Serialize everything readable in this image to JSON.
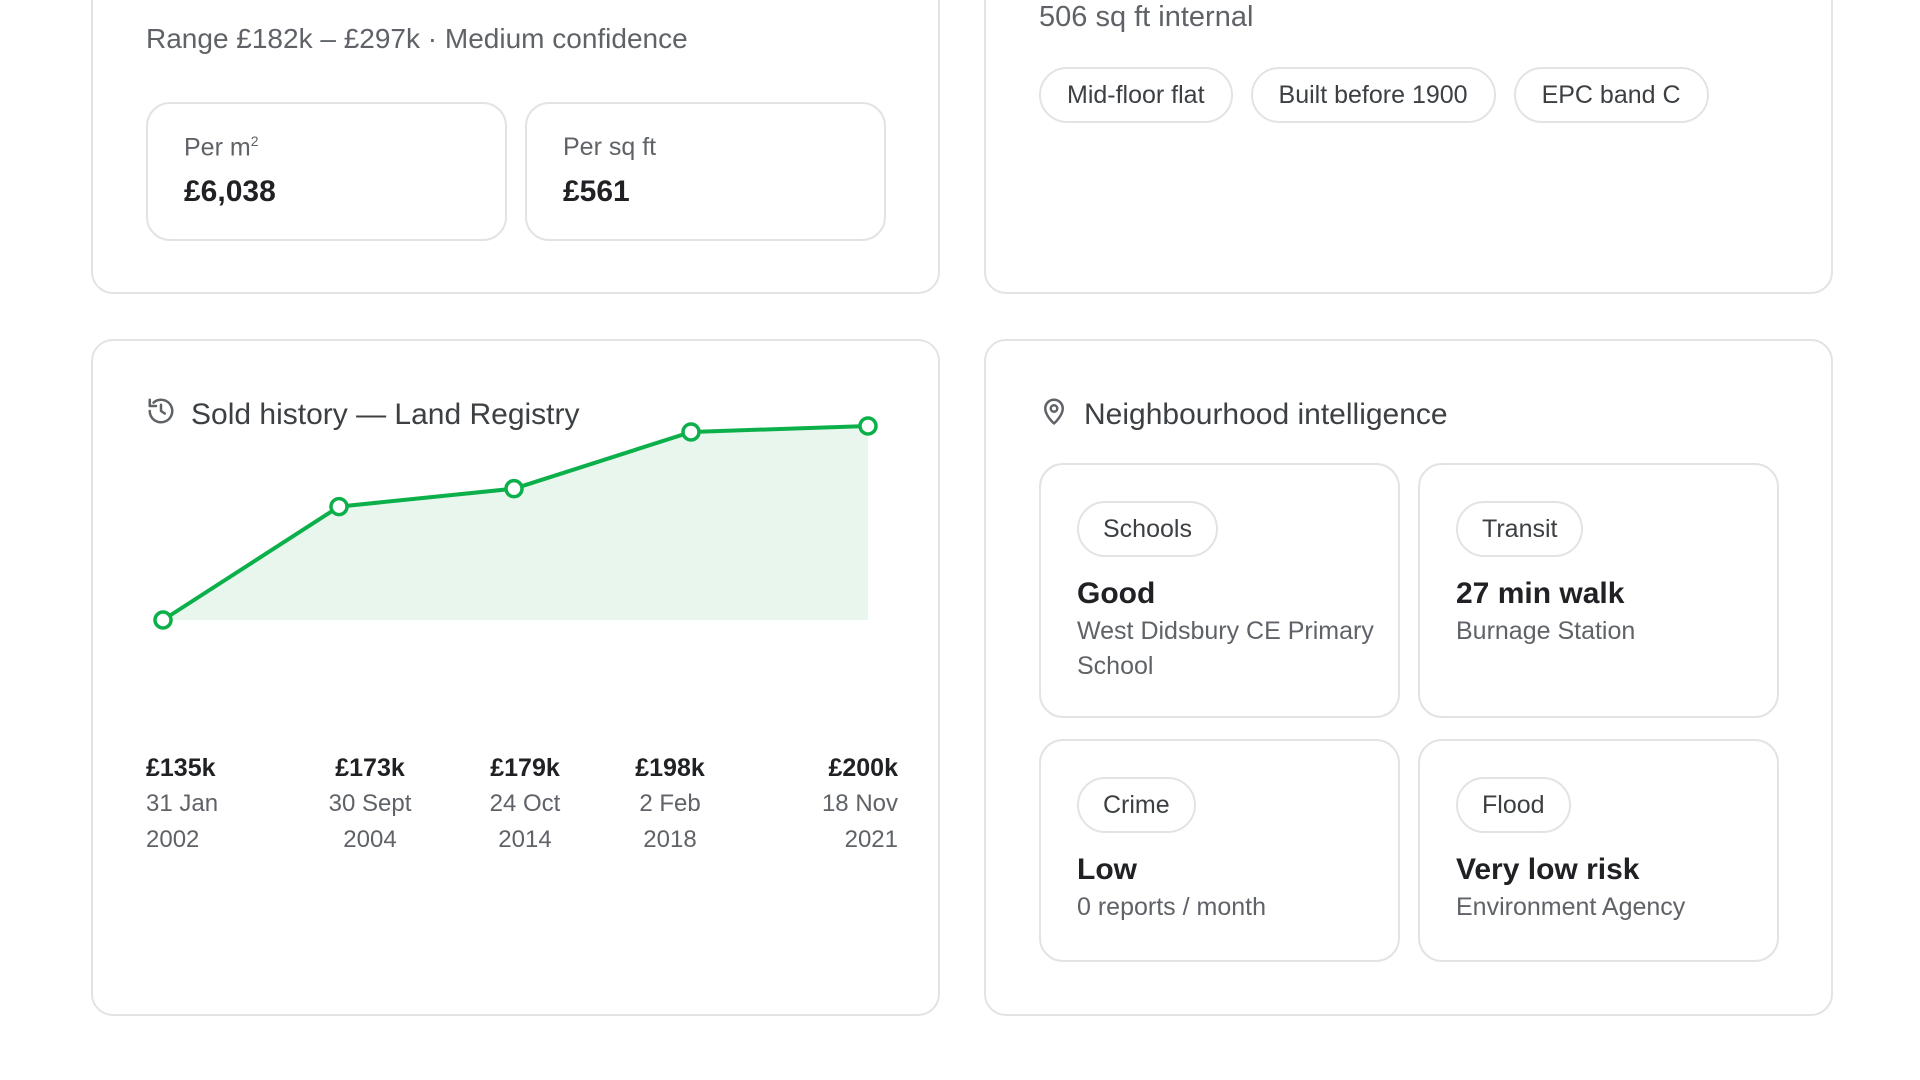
{
  "valuation": {
    "range_text": "Range £182k – £297k · Medium confidence",
    "per_m2_label": "Per m",
    "per_m2_sup": "2",
    "per_m2_value": "£6,038",
    "per_sqft_label": "Per sq ft",
    "per_sqft_value": "£561"
  },
  "property": {
    "size_text": "506 sq ft internal",
    "chips": [
      "Mid-floor flat",
      "Built before 1900",
      "EPC band C"
    ]
  },
  "history": {
    "title": "Sold history — Land Registry",
    "icon": "history-icon",
    "labels": [
      {
        "price": "£135k",
        "date_line1": "31 Jan",
        "date_line2": "2002"
      },
      {
        "price": "£173k",
        "date_line1": "30 Sept",
        "date_line2": "2004"
      },
      {
        "price": "£179k",
        "date_line1": "24 Oct",
        "date_line2": "2014"
      },
      {
        "price": "£198k",
        "date_line1": "2 Feb",
        "date_line2": "2018"
      },
      {
        "price": "£200k",
        "date_line1": "18 Nov",
        "date_line2": "2021"
      }
    ]
  },
  "neighbourhood": {
    "title": "Neighbourhood intelligence",
    "icon": "location-pin-icon",
    "schools": {
      "tag": "Schools",
      "value": "Good",
      "sub": "West Didsbury CE Primary School"
    },
    "transit": {
      "tag": "Transit",
      "value": "27 min walk",
      "sub": "Burnage Station"
    },
    "crime": {
      "tag": "Crime",
      "value": "Low",
      "sub": "0 reports / month"
    },
    "flood": {
      "tag": "Flood",
      "value": "Very low risk",
      "sub": "Environment Agency"
    }
  },
  "colors": {
    "accent": "#0bb04a",
    "area_fill": "#e8f6ee",
    "border": "#e3e3e3"
  },
  "chart_data": {
    "type": "line",
    "title": "Sold history — Land Registry",
    "x": [
      "2002-01-31",
      "2004-09-30",
      "2014-10-24",
      "2018-02-02",
      "2021-11-18"
    ],
    "values": [
      135,
      173,
      179,
      198,
      200
    ],
    "unit": "£k",
    "ylim": [
      135,
      200
    ],
    "grid": false,
    "legend": "none"
  }
}
